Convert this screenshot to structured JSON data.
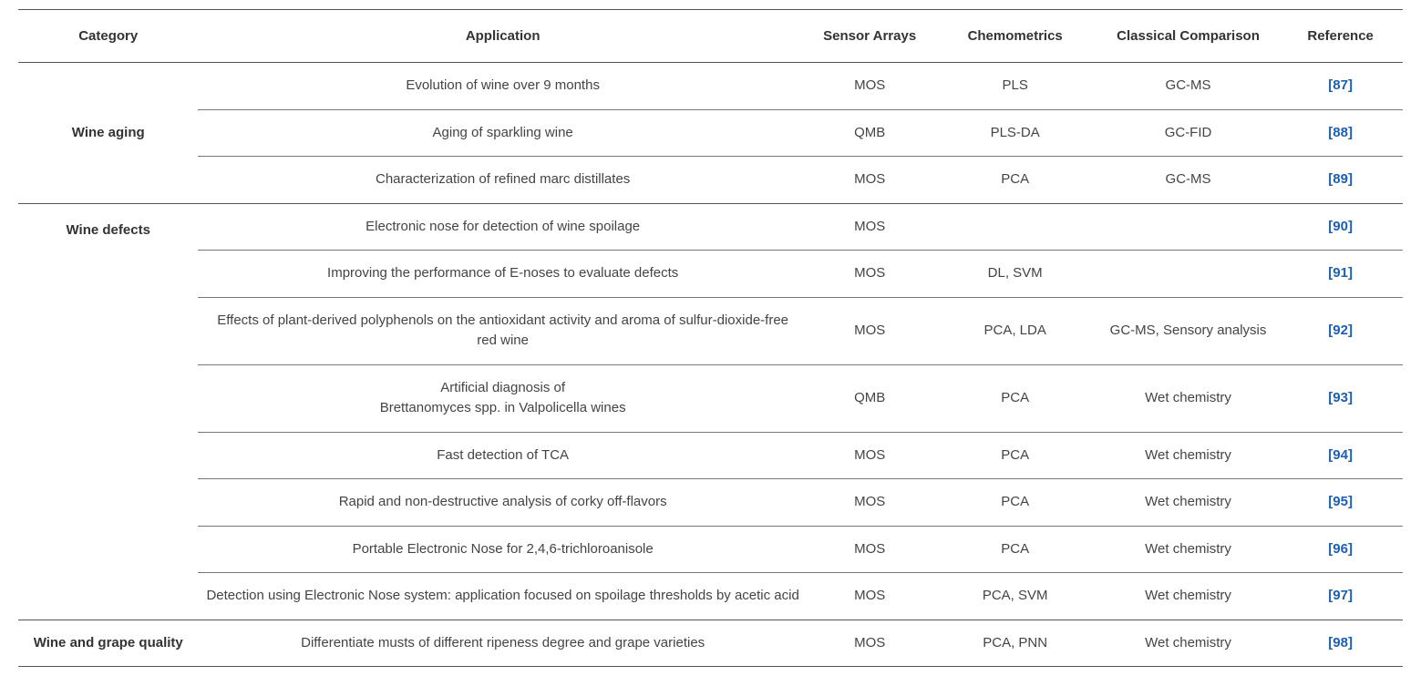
{
  "table": {
    "headers": {
      "category": "Category",
      "application": "Application",
      "sensor": "Sensor Arrays",
      "chemo": "Chemometrics",
      "classical": "Classical Comparison",
      "reference": "Reference"
    },
    "groups": [
      {
        "category": "Wine aging",
        "rows": [
          {
            "application": "Evolution of wine over 9 months",
            "sensor": "MOS",
            "chemo": "PLS",
            "classical": "GC-MS",
            "ref": "[87]"
          },
          {
            "application": "Aging of sparkling wine",
            "sensor": "QMB",
            "chemo": "PLS-DA",
            "classical": "GC-FID",
            "ref": "[88]"
          },
          {
            "application": "Characterization of refined marc distillates",
            "sensor": "MOS",
            "chemo": "PCA",
            "classical": "GC-MS",
            "ref": "[89]"
          }
        ]
      },
      {
        "category": "Wine defects",
        "rows": [
          {
            "application": "Electronic nose for detection of wine spoilage",
            "sensor": "MOS",
            "chemo": "",
            "classical": "",
            "ref": "[90]"
          },
          {
            "application": "Improving the performance of E-noses to evaluate defects",
            "sensor": "MOS",
            "chemo": "DL, SVM",
            "classical": "",
            "ref": "[91]"
          },
          {
            "application": "Effects of plant-derived polyphenols on the antioxidant activity and aroma of sulfur-dioxide-free red wine",
            "sensor": "MOS",
            "chemo": "PCA, LDA",
            "classical": "GC-MS, Sensory analysis",
            "ref": "[92]"
          },
          {
            "application": "Artificial diagnosis of\nBrettanomyces spp. in Valpolicella wines",
            "sensor": "QMB",
            "chemo": "PCA",
            "classical": "Wet chemistry",
            "ref": "[93]"
          },
          {
            "application": "Fast detection of TCA",
            "sensor": "MOS",
            "chemo": "PCA",
            "classical": "Wet chemistry",
            "ref": "[94]"
          },
          {
            "application": "Rapid and non-destructive analysis of corky off-flavors",
            "sensor": "MOS",
            "chemo": "PCA",
            "classical": "Wet chemistry",
            "ref": "[95]"
          },
          {
            "application": "Portable Electronic Nose for 2,4,6-trichloroanisole",
            "sensor": "MOS",
            "chemo": "PCA",
            "classical": "Wet chemistry",
            "ref": "[96]"
          },
          {
            "application": "Detection using Electronic Nose system: application focused on spoilage thresholds by acetic acid",
            "sensor": "MOS",
            "chemo": "PCA, SVM",
            "classical": "Wet chemistry",
            "ref": "[97]"
          }
        ]
      },
      {
        "category": "Wine and grape quality",
        "rows": [
          {
            "application": "Differentiate musts of different ripeness degree and grape varieties",
            "sensor": "MOS",
            "chemo": "PCA, PNN",
            "classical": "Wet chemistry",
            "ref": "[98]"
          }
        ]
      }
    ],
    "style": {
      "link_color": "#1a5fb4",
      "border_color": "#555555",
      "partial_border_color": "#777777",
      "text_color": "#333333",
      "background": "#ffffff"
    }
  }
}
